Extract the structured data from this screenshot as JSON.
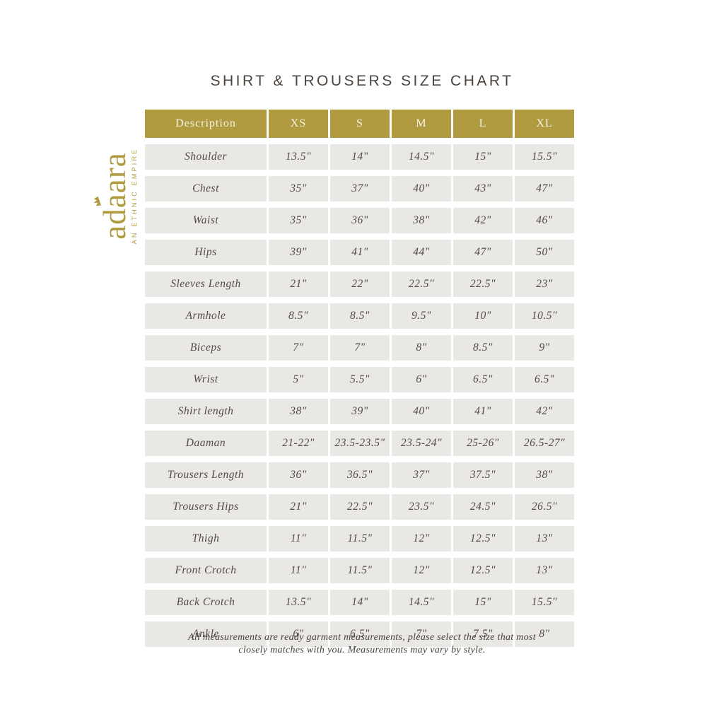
{
  "page": {
    "title": "SHIRT & TROUSERS SIZE CHART",
    "footer_line1": "All measurements are ready garment measurements, please select the size that most",
    "footer_line2": "closely matches with you. Measurements may vary by style."
  },
  "logo": {
    "name": "adaara",
    "name_pre": "ad",
    "name_crowned": "a",
    "name_post": "ara",
    "tagline": "AN ETHNIC EMPIRE",
    "crown_icon": "crown-icon",
    "color": "#b19b40"
  },
  "colors": {
    "gold": "#b19b40",
    "cell_bg": "#e9e8e5",
    "header_text": "#f7f3e2",
    "title_text": "#4a433e",
    "body_text": "#504b46"
  },
  "table": {
    "headers": [
      "Description",
      "XS",
      "S",
      "M",
      "L",
      "XL"
    ],
    "rows": [
      {
        "label": "Shoulder",
        "values": [
          "13.5\"",
          "14\"",
          "14.5\"",
          "15\"",
          "15.5\""
        ]
      },
      {
        "label": "Chest",
        "values": [
          "35\"",
          "37\"",
          "40\"",
          "43\"",
          "47\""
        ]
      },
      {
        "label": "Waist",
        "values": [
          "35\"",
          "36\"",
          "38\"",
          "42\"",
          "46\""
        ]
      },
      {
        "label": "Hips",
        "values": [
          "39\"",
          "41\"",
          "44\"",
          "47\"",
          "50\""
        ]
      },
      {
        "label": "Sleeves Length",
        "values": [
          "21\"",
          "22\"",
          "22.5\"",
          "22.5\"",
          "23\""
        ]
      },
      {
        "label": "Armhole",
        "values": [
          "8.5\"",
          "8.5\"",
          "9.5\"",
          "10\"",
          "10.5\""
        ]
      },
      {
        "label": "Biceps",
        "values": [
          "7\"",
          "7\"",
          "8\"",
          "8.5\"",
          "9\""
        ]
      },
      {
        "label": "Wrist",
        "values": [
          "5\"",
          "5.5\"",
          "6\"",
          "6.5\"",
          "6.5\""
        ]
      },
      {
        "label": "Shirt length",
        "values": [
          "38\"",
          "39\"",
          "40\"",
          "41\"",
          "42\""
        ]
      },
      {
        "label": "Daaman",
        "values": [
          "21-22\"",
          "23.5-23.5\"",
          "23.5-24\"",
          "25-26\"",
          "26.5-27\""
        ]
      },
      {
        "label": "Trousers Length",
        "values": [
          "36\"",
          "36.5\"",
          "37\"",
          "37.5\"",
          "38\""
        ]
      },
      {
        "label": "Trousers Hips",
        "values": [
          "21\"",
          "22.5\"",
          "23.5\"",
          "24.5\"",
          "26.5\""
        ]
      },
      {
        "label": "Thigh",
        "values": [
          "11\"",
          "11.5\"",
          "12\"",
          "12.5\"",
          "13\""
        ]
      },
      {
        "label": "Front Crotch",
        "values": [
          "11\"",
          "11.5\"",
          "12\"",
          "12.5\"",
          "13\""
        ]
      },
      {
        "label": "Back Crotch",
        "values": [
          "13.5\"",
          "14\"",
          "14.5\"",
          "15\"",
          "15.5\""
        ]
      },
      {
        "label": "Ankle",
        "values": [
          "6\"",
          "6.5\"",
          "7\"",
          "7.5\"",
          "8\""
        ]
      }
    ]
  }
}
